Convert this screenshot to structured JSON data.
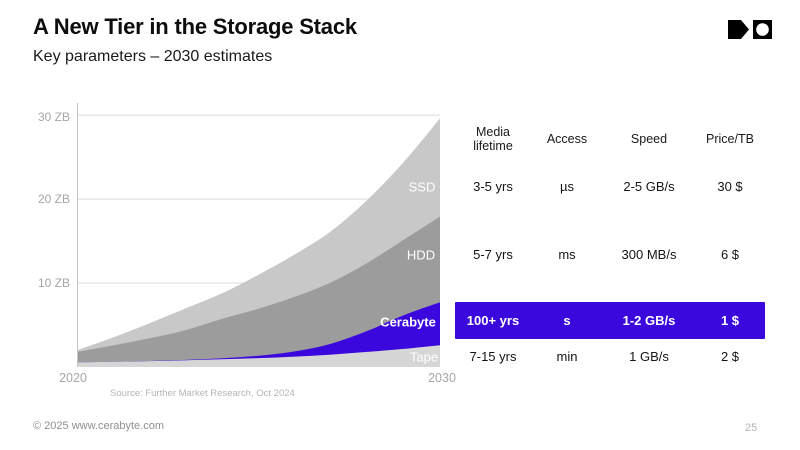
{
  "slide": {
    "title": "A New Tier in the Storage Stack",
    "subtitle": "Key parameters – 2030 estimates",
    "source_note": "Source: Further Market Research, Oct 2024",
    "footer_left": "© 2025 www.cerabyte.com",
    "page_number": "25"
  },
  "table": {
    "columns": [
      "Media lifetime",
      "Access",
      "Speed",
      "Price/TB"
    ],
    "highlight_color": "#3a08dd",
    "rows": [
      {
        "name": "SSD",
        "highlighted": false,
        "cells": [
          "3-5 yrs",
          "µs",
          "2-5 GB/s",
          "30 $"
        ]
      },
      {
        "name": "HDD",
        "highlighted": false,
        "cells": [
          "5-7 yrs",
          "ms",
          "300 MB/s",
          "6 $"
        ]
      },
      {
        "name": "Cerabyte",
        "highlighted": true,
        "cells": [
          "100+ yrs",
          "s",
          "1-2 GB/s",
          "1 $"
        ]
      },
      {
        "name": "Tape",
        "highlighted": false,
        "cells": [
          "7-15 yrs",
          "min",
          "1 GB/s",
          "2 $"
        ]
      }
    ]
  },
  "chart_data": {
    "type": "area",
    "stacked": true,
    "unit": "ZB",
    "x": [
      2020,
      2021,
      2022,
      2023,
      2024,
      2025,
      2026,
      2027,
      2028,
      2029,
      2030
    ],
    "xtick_labels": [
      "2020",
      "2030"
    ],
    "yticks": [
      10,
      20,
      30
    ],
    "ytick_labels": [
      "10 ZB",
      "20 ZB",
      "30 ZB"
    ],
    "ylim": [
      0,
      31.2
    ],
    "grid": "horizontal",
    "legend": "labels-on-areas",
    "series": [
      {
        "name": "Tape",
        "color": "#d6d6d6",
        "values": [
          0.55,
          0.62,
          0.7,
          0.8,
          0.92,
          1.06,
          1.24,
          1.48,
          1.8,
          2.16,
          2.6
        ]
      },
      {
        "name": "Cerabyte",
        "color": "#3a08dd",
        "values": [
          0.0,
          0.0,
          0.02,
          0.05,
          0.12,
          0.28,
          0.62,
          1.3,
          2.5,
          4.0,
          5.1
        ]
      },
      {
        "name": "HDD",
        "color": "#9c9c9c",
        "values": [
          1.25,
          1.95,
          2.7,
          3.55,
          4.7,
          5.6,
          6.5,
          7.3,
          8.1,
          9.0,
          10.2
        ]
      },
      {
        "name": "SSD",
        "color": "#c8c8c8",
        "values": [
          0.2,
          0.95,
          1.8,
          2.6,
          3.05,
          4.05,
          5.05,
          6.1,
          7.5,
          9.25,
          11.7
        ]
      }
    ]
  }
}
